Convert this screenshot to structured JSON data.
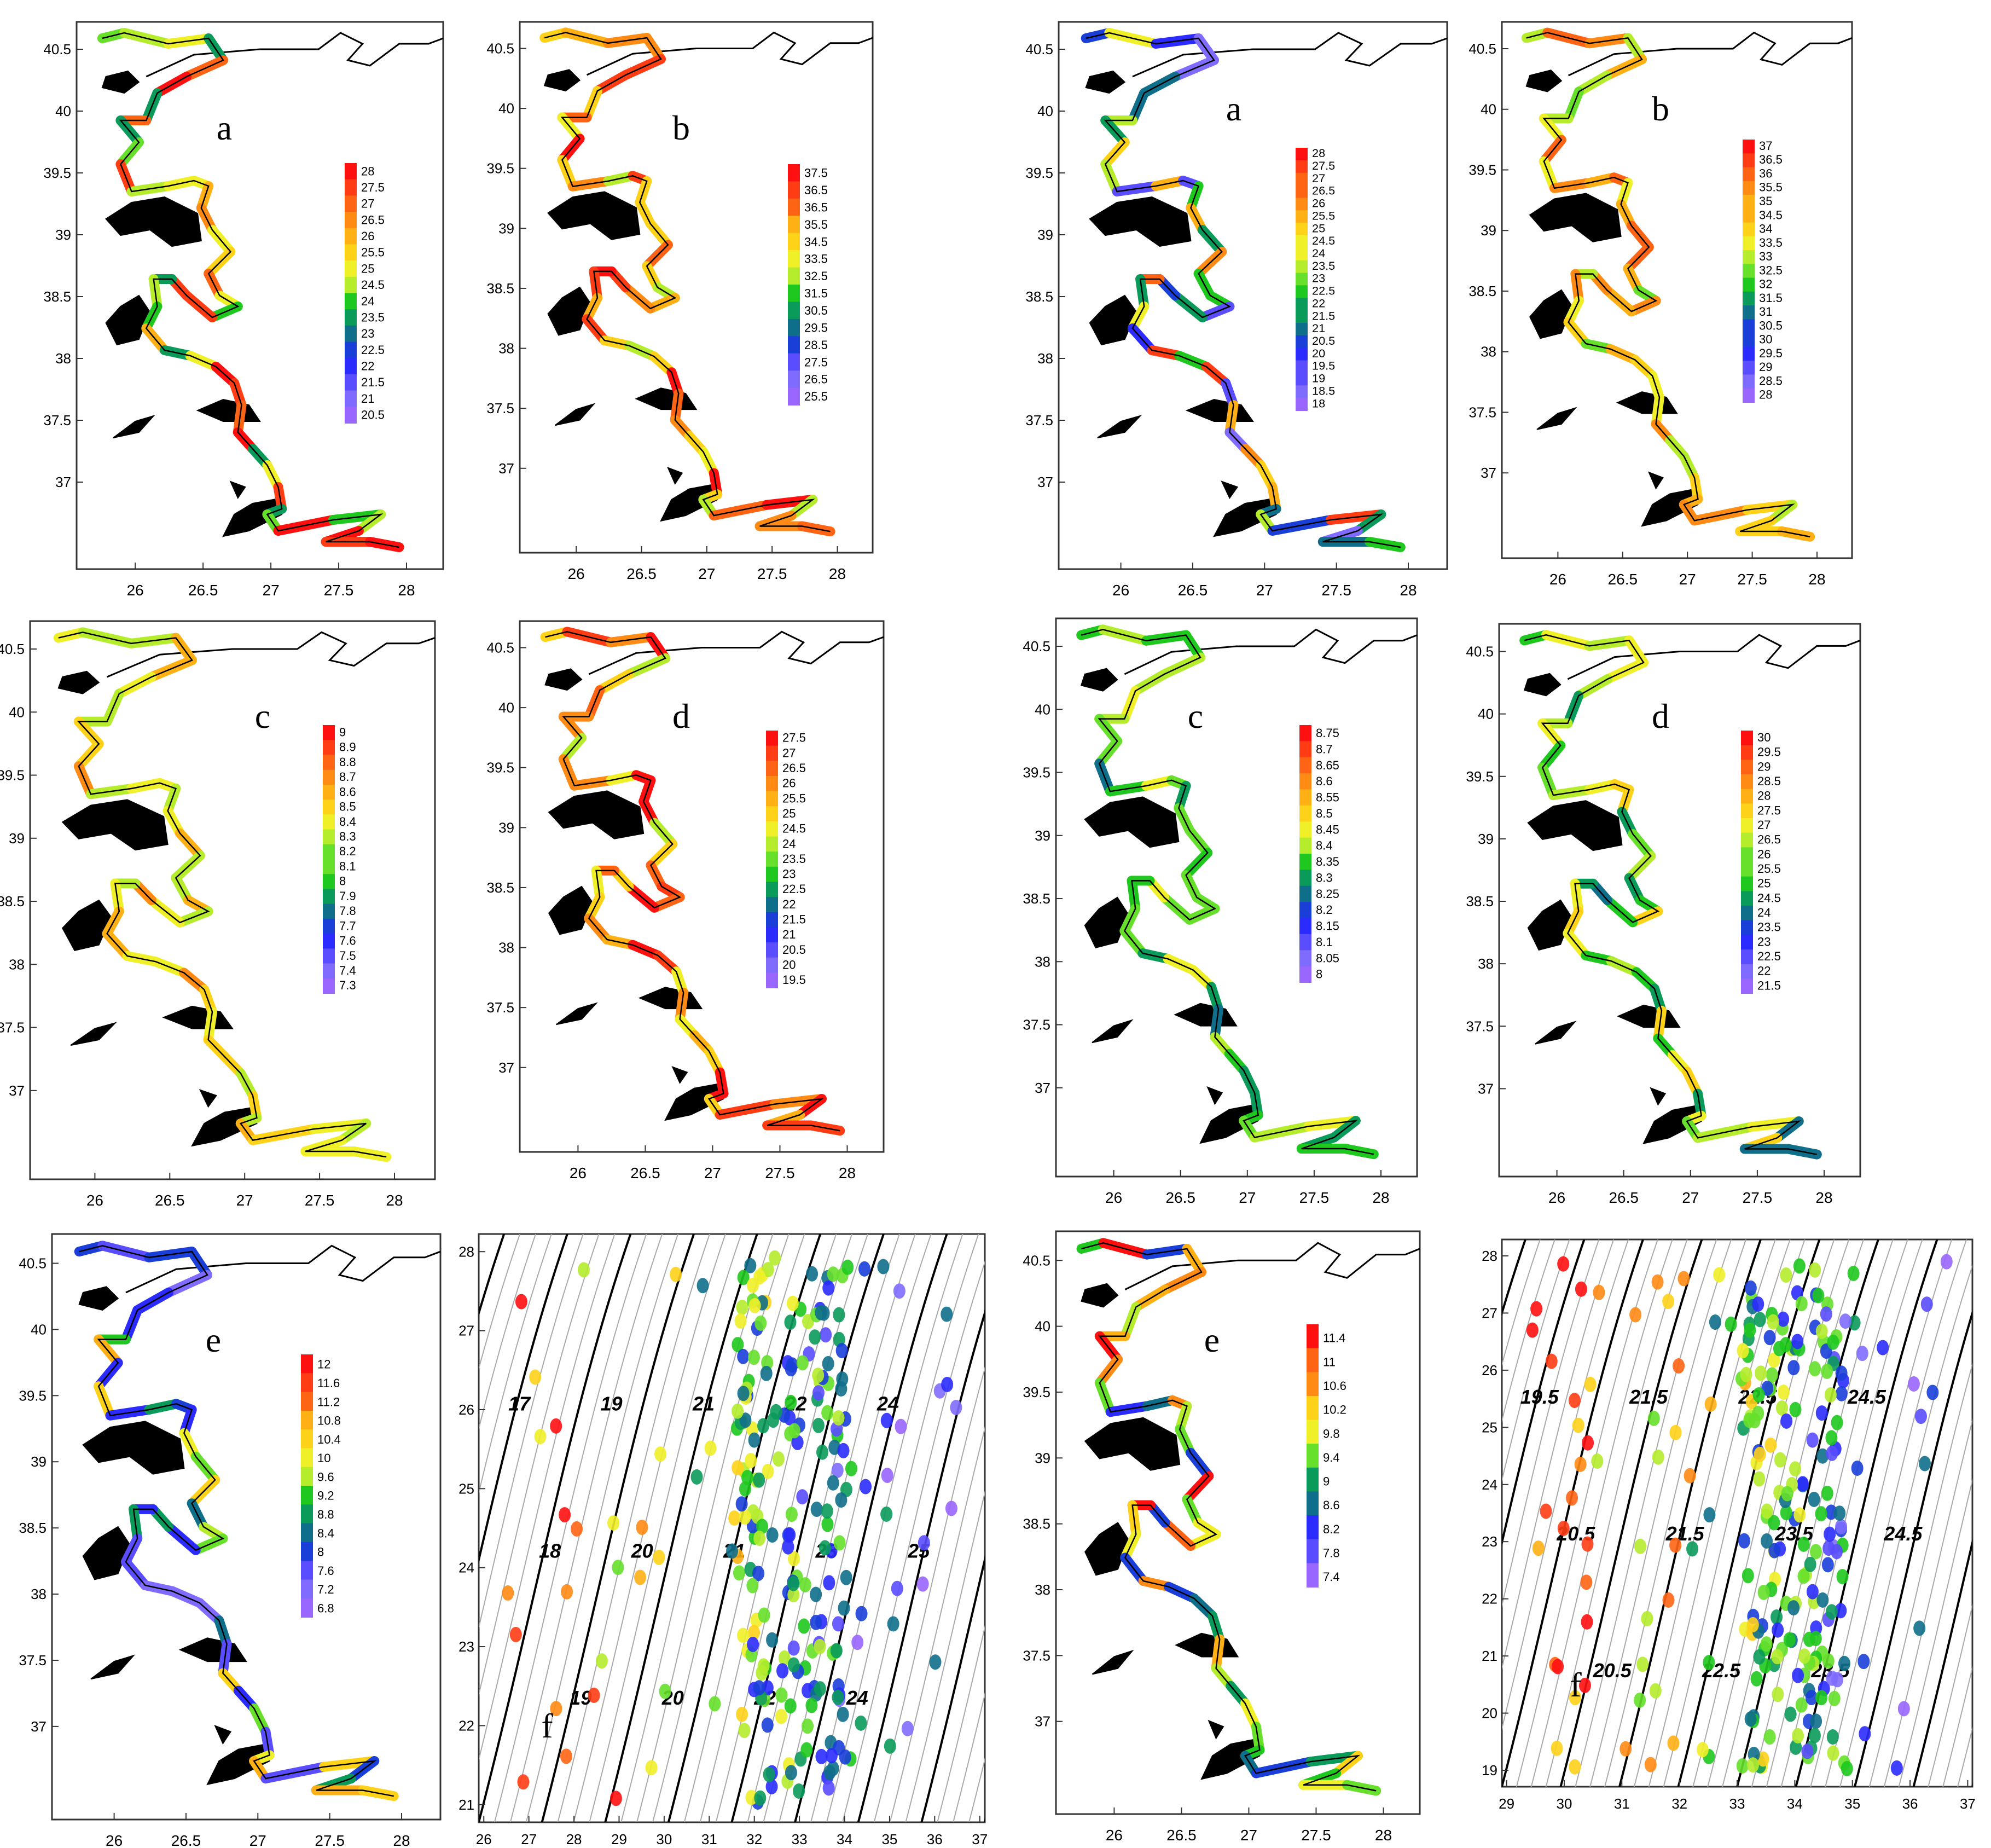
{
  "colormap": [
    "#9966ff",
    "#7f6bff",
    "#5a4dff",
    "#2b2bff",
    "#1a3fd8",
    "#0f6f8a",
    "#0a9a5a",
    "#1ec81e",
    "#66e02a",
    "#b5ec2c",
    "#f0f028",
    "#ffd21a",
    "#ffb014",
    "#ff8a14",
    "#ff6414",
    "#ff3c14",
    "#ff1010"
  ],
  "map_axes": {
    "x_ticks": [
      "26",
      "26.5",
      "27",
      "27.5",
      "28"
    ],
    "y_ticks": [
      "40.5",
      "40",
      "39.5",
      "39",
      "38.5",
      "38",
      "37.5",
      "37"
    ]
  },
  "scatter_axes": {
    "left": {
      "x_ticks": [
        "26",
        "27",
        "28",
        "29",
        "30",
        "31",
        "32",
        "33",
        "34",
        "35",
        "36",
        "37"
      ],
      "y_ticks": [
        "28",
        "27",
        "26",
        "25",
        "24",
        "23",
        "22",
        "21"
      ],
      "contour_labels": [
        "17",
        "18",
        "19",
        "19",
        "20",
        "20",
        "21",
        "21",
        "22",
        "22",
        "23",
        "24",
        "24",
        "25"
      ]
    },
    "right": {
      "x_ticks": [
        "29",
        "30",
        "31",
        "32",
        "33",
        "34",
        "35",
        "36",
        "37"
      ],
      "y_ticks": [
        "28",
        "27",
        "26",
        "25",
        "24",
        "23",
        "22",
        "21",
        "20",
        "19"
      ],
      "contour_labels": [
        "19.5",
        "20.5",
        "20.5",
        "21.5",
        "21.5",
        "22.5",
        "22.5",
        "23.5",
        "23.5",
        "24.5",
        "24.5"
      ]
    }
  },
  "panels": [
    {
      "letter": "a",
      "scale": [
        "28",
        "27.5",
        "27",
        "26.5",
        "26",
        "25.5",
        "25",
        "24.5",
        "24",
        "23.5",
        "23",
        "22.5",
        "22",
        "21.5",
        "21",
        "20.5"
      ]
    },
    {
      "letter": "b",
      "scale": [
        "37.5",
        "36.5",
        "36.5",
        "35.5",
        "34.5",
        "33.5",
        "32.5",
        "31.5",
        "30.5",
        "29.5",
        "28.5",
        "27.5",
        "26.5",
        "25.5"
      ]
    },
    {
      "letter": "a",
      "scale": [
        "28",
        "27.5",
        "27",
        "26.5",
        "26",
        "25.5",
        "25",
        "24.5",
        "24",
        "23.5",
        "23",
        "22.5",
        "22",
        "21.5",
        "21",
        "20.5",
        "20",
        "19.5",
        "19",
        "18.5",
        "18"
      ]
    },
    {
      "letter": "b",
      "scale": [
        "37",
        "36.5",
        "36",
        "35.5",
        "35",
        "34.5",
        "34",
        "33.5",
        "33",
        "32.5",
        "32",
        "31.5",
        "31",
        "30.5",
        "30",
        "29.5",
        "29",
        "28.5",
        "28"
      ]
    },
    {
      "letter": "c",
      "scale": [
        "9",
        "8.9",
        "8.8",
        "8.7",
        "8.6",
        "8.5",
        "8.4",
        "8.3",
        "8.2",
        "8.1",
        "8",
        "7.9",
        "7.8",
        "7.7",
        "7.6",
        "7.5",
        "7.4",
        "7.3"
      ]
    },
    {
      "letter": "d",
      "scale": [
        "27.5",
        "27",
        "26.5",
        "26",
        "25.5",
        "25",
        "24.5",
        "24",
        "23.5",
        "23",
        "22.5",
        "22",
        "21.5",
        "21",
        "20.5",
        "20",
        "19.5"
      ]
    },
    {
      "letter": "c",
      "scale": [
        "8.75",
        "8.7",
        "8.65",
        "8.6",
        "8.55",
        "8.5",
        "8.45",
        "8.4",
        "8.35",
        "8.3",
        "8.25",
        "8.2",
        "8.15",
        "8.1",
        "8.05",
        "8"
      ]
    },
    {
      "letter": "d",
      "scale": [
        "30",
        "29.5",
        "29",
        "28.5",
        "28",
        "27.5",
        "27",
        "26.5",
        "26",
        "25.5",
        "25",
        "24.5",
        "24",
        "23.5",
        "23",
        "22.5",
        "22",
        "21.5"
      ]
    },
    {
      "letter": "e",
      "scale": [
        "12",
        "11.6",
        "11.2",
        "10.8",
        "10.4",
        "10",
        "9.6",
        "9.2",
        "8.8",
        "8.4",
        "8",
        "7.6",
        "7.2",
        "6.8"
      ]
    },
    {
      "letter": "e",
      "scale": [
        "11.4",
        "11",
        "10.6",
        "10.2",
        "9.8",
        "9.4",
        "9",
        "8.6",
        "8.2",
        "7.8",
        "7.4"
      ]
    }
  ],
  "scatter_panels": [
    {
      "letter": "f"
    },
    {
      "letter": "f"
    }
  ]
}
